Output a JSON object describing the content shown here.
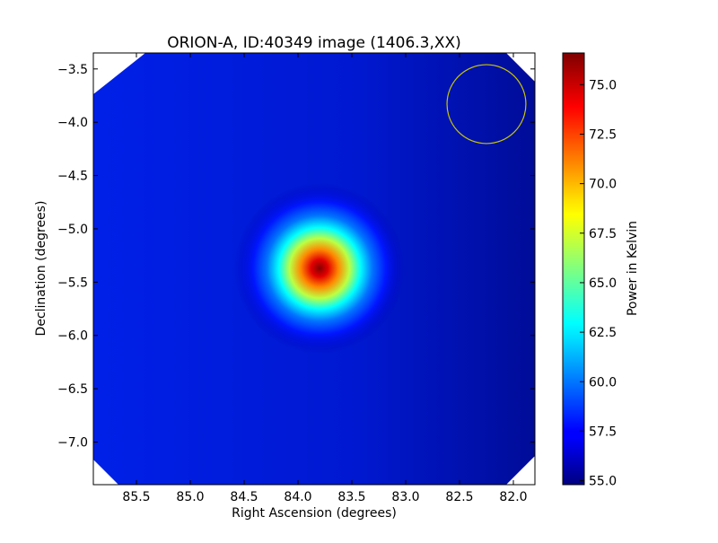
{
  "chart_data": {
    "type": "heatmap",
    "title": "ORION-A, ID:40349 image (1406.3,XX)",
    "xlabel": "Right Ascension (degrees)",
    "ylabel": "Declination (degrees)",
    "xlim": [
      85.9,
      81.8
    ],
    "ylim": [
      -7.4,
      -3.35
    ],
    "x_ticks": [
      {
        "value": 85.5,
        "label": "85.5"
      },
      {
        "value": 85.0,
        "label": "85.0"
      },
      {
        "value": 84.5,
        "label": "84.5"
      },
      {
        "value": 84.0,
        "label": "84.0"
      },
      {
        "value": 83.5,
        "label": "83.5"
      },
      {
        "value": 83.0,
        "label": "83.0"
      },
      {
        "value": 82.5,
        "label": "82.5"
      },
      {
        "value": 82.0,
        "label": "82.0"
      }
    ],
    "y_ticks": [
      {
        "value": -3.5,
        "label": "−3.5"
      },
      {
        "value": -4.0,
        "label": "−4.0"
      },
      {
        "value": -4.5,
        "label": "−4.5"
      },
      {
        "value": -5.0,
        "label": "−5.0"
      },
      {
        "value": -5.5,
        "label": "−5.5"
      },
      {
        "value": -6.0,
        "label": "−6.0"
      },
      {
        "value": -6.5,
        "label": "−6.5"
      },
      {
        "value": -7.0,
        "label": "−7.0"
      }
    ],
    "colormap": "jet",
    "colorbar": {
      "label": "Power in Kelvin",
      "range": [
        54.8,
        76.6
      ],
      "ticks": [
        {
          "value": 55.0,
          "label": "55.0"
        },
        {
          "value": 57.5,
          "label": "57.5"
        },
        {
          "value": 60.0,
          "label": "60.0"
        },
        {
          "value": 62.5,
          "label": "62.5"
        },
        {
          "value": 65.0,
          "label": "65.0"
        },
        {
          "value": 67.5,
          "label": "67.5"
        },
        {
          "value": 70.0,
          "label": "70.0"
        },
        {
          "value": 72.5,
          "label": "72.5"
        },
        {
          "value": 75.0,
          "label": "75.0"
        }
      ]
    },
    "source": {
      "ra": 83.8,
      "dec": -5.37,
      "peak": 76.5
    },
    "background_level": 56.0,
    "beam_circle": {
      "ra": 82.25,
      "dec": -3.83,
      "radius_deg": 0.37,
      "color": "#c8c800"
    },
    "grid": false
  }
}
